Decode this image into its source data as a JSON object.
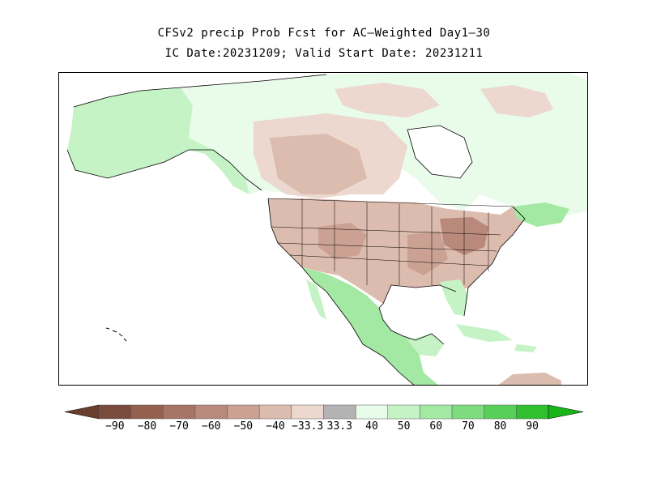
{
  "title": {
    "line1": "CFSv2 precip Prob Fcst for AC—Weighted Day1—30",
    "line2": "IC Date:20231209; Valid Start Date: 20231211"
  },
  "legend": {
    "bins": [
      {
        "label": "-90",
        "color": "#7a4b3c"
      },
      {
        "label": "-80",
        "color": "#95614f"
      },
      {
        "label": "-70",
        "color": "#a77566"
      },
      {
        "label": "-60",
        "color": "#b9897b"
      },
      {
        "label": "-50",
        "color": "#cba194"
      },
      {
        "label": "-40",
        "color": "#dcbcae"
      },
      {
        "label": "-33.3",
        "color": "#ecd8cf"
      },
      {
        "label": "33.3",
        "color": "#b3b3b3"
      },
      {
        "label": "40",
        "color": "#e9fbe9"
      },
      {
        "label": "50",
        "color": "#c6f3c6"
      },
      {
        "label": "60",
        "color": "#a3e8a3"
      },
      {
        "label": "70",
        "color": "#7edc7e"
      },
      {
        "label": "80",
        "color": "#58cf58"
      },
      {
        "label": "90",
        "color": "#2fbf2f"
      }
    ],
    "tick_labels": [
      "−90",
      "−80",
      "−70",
      "−60",
      "−50",
      "−40",
      "−33.3",
      "33.3",
      "40",
      "50",
      "60",
      "70",
      "80",
      "90"
    ],
    "low_arrow_color": "#6b3f30",
    "high_arrow_color": "#17b517"
  },
  "map": {
    "region": "North America",
    "colors": {
      "ocean": "#ffffff",
      "light_green": "#c6f3c6",
      "mid_green": "#a3e8a3",
      "pale_green": "#e9fbe9",
      "pale_brown": "#ecd8cf",
      "light_brown": "#dcbcae",
      "mid_brown": "#cba194",
      "dark_brown": "#b9897b",
      "outline": "#000000"
    }
  }
}
